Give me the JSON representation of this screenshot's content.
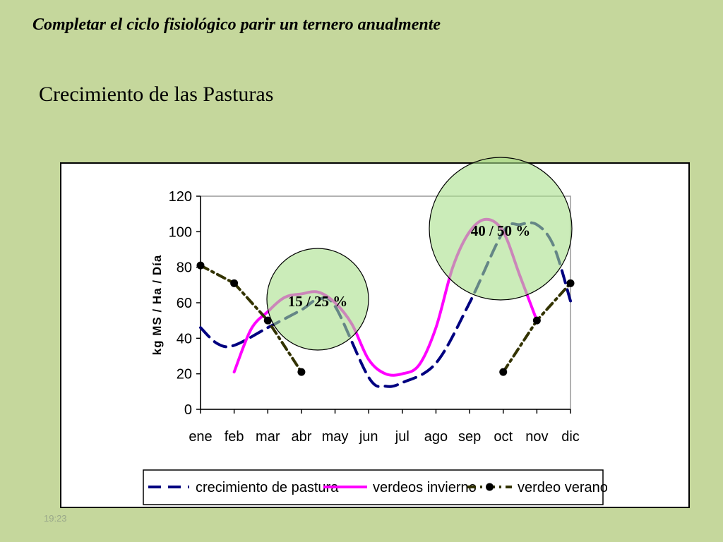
{
  "slide": {
    "subtitle": "Completar el ciclo fisiológico parir un ternero anualmente",
    "title": "Crecimiento de las Pasturas",
    "time": "19:23"
  },
  "chart_data": {
    "type": "line",
    "title": "",
    "xlabel": "",
    "ylabel": "kg MS / Ha / Día",
    "ylim": [
      0,
      120
    ],
    "yticks": [
      0,
      20,
      40,
      60,
      80,
      100,
      120
    ],
    "categories": [
      "ene",
      "feb",
      "mar",
      "abr",
      "may",
      "jun",
      "jul",
      "ago",
      "sep",
      "oct",
      "nov",
      "dic"
    ],
    "grid": false,
    "legend_position": "bottom",
    "series": [
      {
        "name": "crecimiento de pastura",
        "color": "#000080",
        "style": "dashed",
        "x": [
          "ene",
          "ene-feb",
          "feb",
          "mar",
          "abr",
          "abr-may",
          "may",
          "jun",
          "jun-jul",
          "jul",
          "ago",
          "sep",
          "oct",
          "oct-nov",
          "nov",
          "nov-dic",
          "dic"
        ],
        "values": [
          46,
          37,
          36,
          46,
          56,
          62,
          58,
          18,
          13,
          15,
          26,
          60,
          100,
          104,
          104,
          92,
          61
        ]
      },
      {
        "name": "verdeos invierno",
        "color": "#ff00ff",
        "style": "solid",
        "x": [
          "feb",
          "feb-mar",
          "mar",
          "mar-abr",
          "abr",
          "abr-may",
          "may",
          "may-jun",
          "jun",
          "jun-jul",
          "jul",
          "jul-ago",
          "ago",
          "ago-sep",
          "sep",
          "sep-oct",
          "oct",
          "oct-nov",
          "nov"
        ],
        "values": [
          21,
          45,
          55,
          63,
          65,
          66,
          60,
          48,
          28,
          20,
          20,
          25,
          46,
          80,
          100,
          107,
          100,
          75,
          50
        ]
      },
      {
        "name": "verdeo verano",
        "color": "#333300",
        "style": "dash-dot",
        "marker": "circle",
        "segments": [
          {
            "x": [
              "ene",
              "feb",
              "mar",
              "abr"
            ],
            "values": [
              81,
              71,
              50,
              21
            ]
          },
          {
            "x": [
              "oct",
              "nov",
              "dic"
            ],
            "values": [
              21,
              50,
              71
            ]
          }
        ]
      }
    ],
    "annotations": [
      {
        "text": "15 / 25 %",
        "fill": "#a8e08a"
      },
      {
        "text": "40 / 50 %",
        "fill": "#a8e08a"
      }
    ]
  }
}
